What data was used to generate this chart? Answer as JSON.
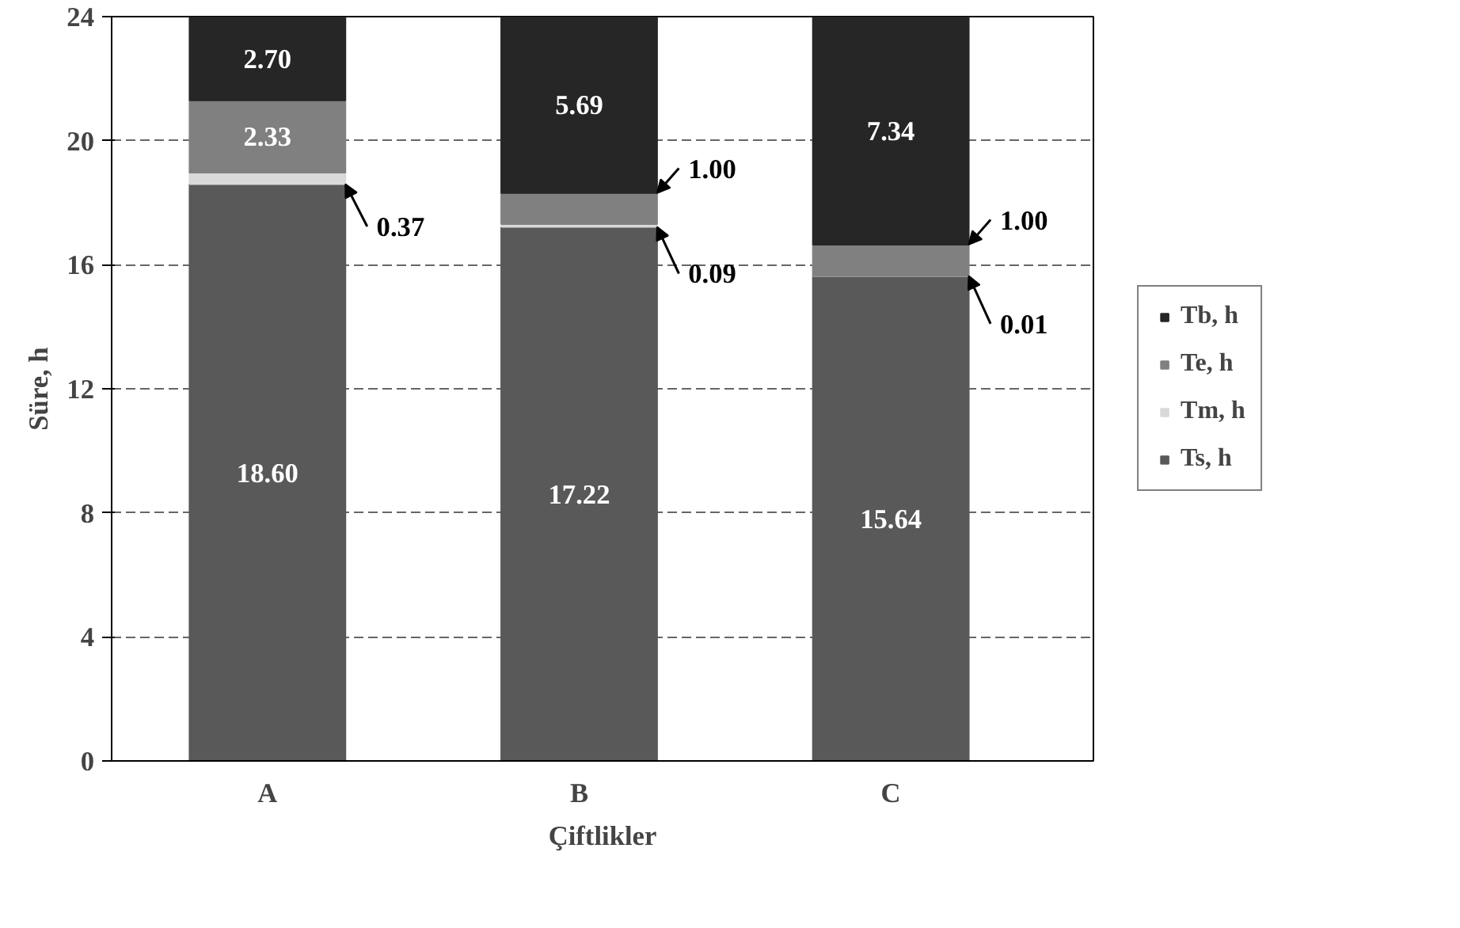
{
  "chart_data": {
    "type": "bar",
    "stacked": true,
    "xlabel": "Çiftlikler",
    "ylabel": "Süre, h",
    "categories": [
      "A",
      "B",
      "C"
    ],
    "series": [
      {
        "name": "Ts, h",
        "color": "#595959",
        "values": [
          18.6,
          17.22,
          15.64
        ],
        "value_labels": [
          "18.60",
          "17.22",
          "15.64"
        ]
      },
      {
        "name": "Tm, h",
        "color": "#d9d9d9",
        "values": [
          0.37,
          0.09,
          0.01
        ],
        "value_labels": [
          "0.37",
          "0.09",
          "0.01"
        ]
      },
      {
        "name": "Te, h",
        "color": "#808080",
        "values": [
          2.33,
          1.0,
          1.0
        ],
        "value_labels": [
          "2.33",
          "1.00",
          "1.00"
        ]
      },
      {
        "name": "Tb, h",
        "color": "#262626",
        "values": [
          2.7,
          5.69,
          7.34
        ],
        "value_labels": [
          "2.70",
          "5.69",
          "7.34"
        ]
      }
    ],
    "ylim": [
      0,
      24
    ],
    "yticks": [
      0,
      4,
      8,
      12,
      16,
      20,
      24
    ],
    "grid": "y",
    "legend": "right"
  }
}
